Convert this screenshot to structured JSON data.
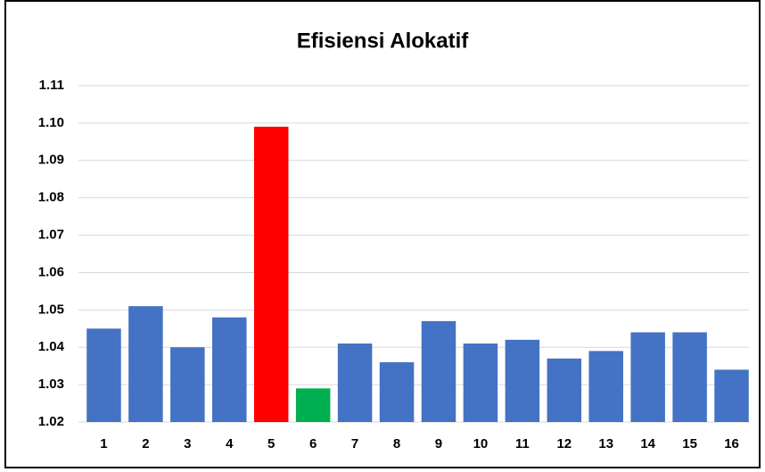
{
  "chart_data": {
    "type": "bar",
    "title": "Efisiensi Alokatif",
    "categories": [
      "1",
      "2",
      "3",
      "4",
      "5",
      "6",
      "7",
      "8",
      "9",
      "10",
      "11",
      "12",
      "13",
      "14",
      "15",
      "16"
    ],
    "values": [
      1.045,
      1.051,
      1.04,
      1.048,
      1.099,
      1.029,
      1.041,
      1.036,
      1.047,
      1.041,
      1.042,
      1.037,
      1.039,
      1.044,
      1.044,
      1.034
    ],
    "colors": [
      "#4472c4",
      "#4472c4",
      "#4472c4",
      "#4472c4",
      "#ff0000",
      "#00b050",
      "#4472c4",
      "#4472c4",
      "#4472c4",
      "#4472c4",
      "#4472c4",
      "#4472c4",
      "#4472c4",
      "#4472c4",
      "#4472c4",
      "#4472c4"
    ],
    "ylim": [
      1.02,
      1.11
    ],
    "yticks": [
      1.02,
      1.03,
      1.04,
      1.05,
      1.06,
      1.07,
      1.08,
      1.09,
      {
        "value": 1.1,
        "label": "1.10"
      },
      1.11
    ],
    "grid": true
  }
}
